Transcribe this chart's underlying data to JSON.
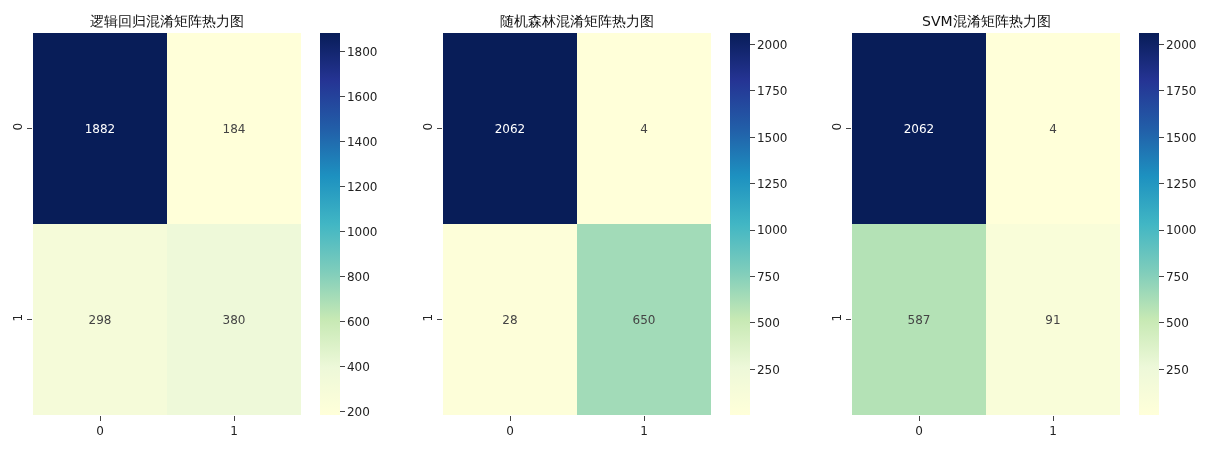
{
  "chart_data": [
    {
      "type": "heatmap",
      "title": "逻辑回归混淆矩阵热力图",
      "categories": [
        "0",
        "1"
      ],
      "y_categories": [
        "0",
        "1"
      ],
      "cells": [
        [
          1882,
          184
        ],
        [
          298,
          380
        ]
      ],
      "data_labels": true,
      "clim": [
        184,
        1882
      ],
      "cticks": [
        200,
        400,
        600,
        800,
        1000,
        1200,
        1400,
        1600,
        1800
      ]
    },
    {
      "type": "heatmap",
      "title": "随机森林混淆矩阵热力图",
      "categories": [
        "0",
        "1"
      ],
      "y_categories": [
        "0",
        "1"
      ],
      "cells": [
        [
          2062,
          4
        ],
        [
          28,
          650
        ]
      ],
      "data_labels": true,
      "clim": [
        4,
        2062
      ],
      "cticks": [
        250,
        500,
        750,
        1000,
        1250,
        1500,
        1750,
        2000
      ]
    },
    {
      "type": "heatmap",
      "title": "SVM混淆矩阵热力图",
      "categories": [
        "0",
        "1"
      ],
      "y_categories": [
        "0",
        "1"
      ],
      "cells": [
        [
          2062,
          4
        ],
        [
          587,
          91
        ]
      ],
      "data_labels": true,
      "clim": [
        4,
        2062
      ],
      "cticks": [
        250,
        500,
        750,
        1000,
        1250,
        1500,
        1750,
        2000
      ]
    }
  ]
}
